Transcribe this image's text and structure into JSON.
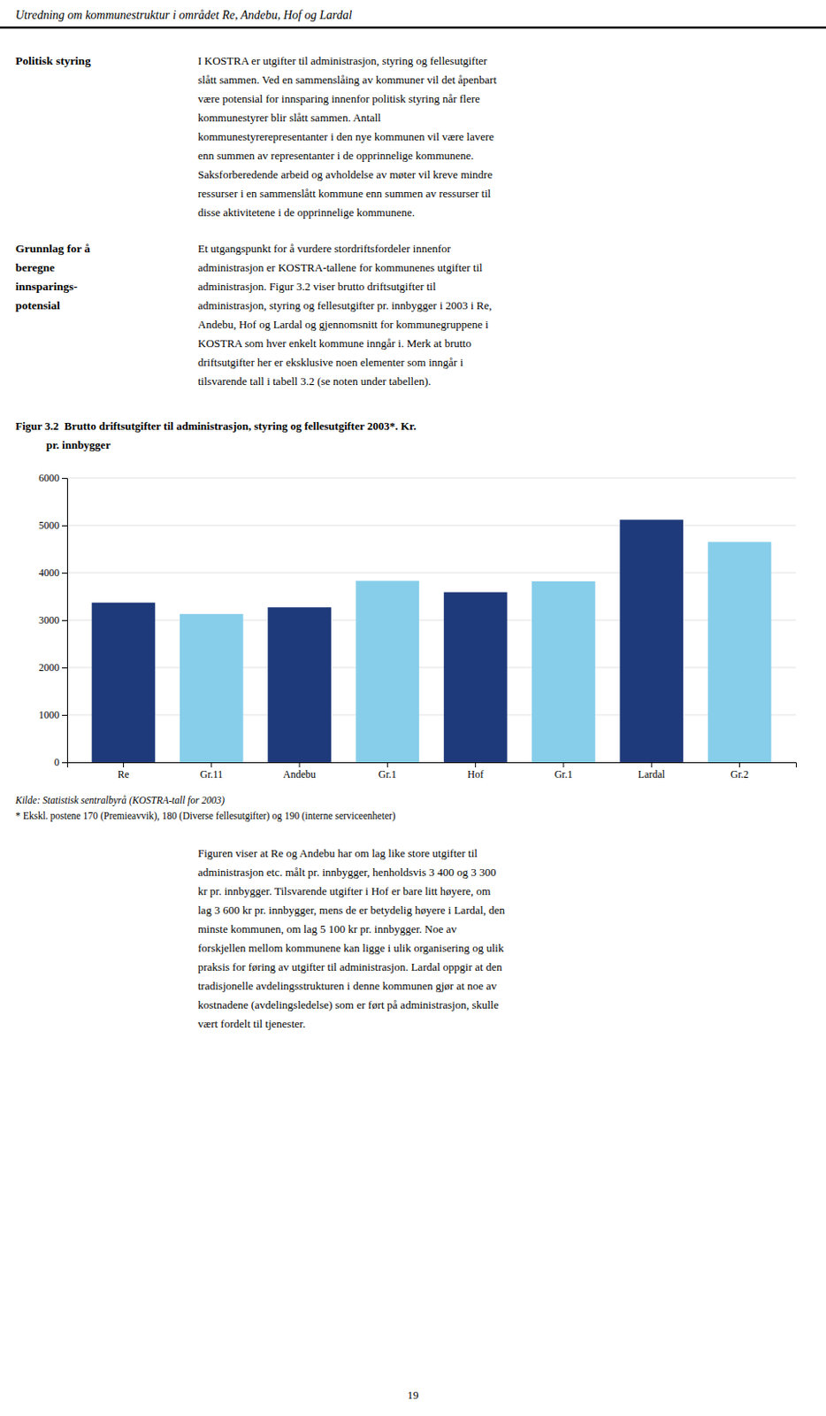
{
  "page_title": "Utredning om kommunestruktur i området Re, Andebu, Hof og Lardal",
  "heading1_lines": [
    "Politisk styring"
  ],
  "paragraph1_lines": [
    "I KOSTRA er utgifter til administrasjon, styring og fellesutgifter",
    "slått sammen. Ved en sammenslåing av kommuner vil det åpenbart",
    "være potensial for innsparing innenfor politisk styring når flere",
    "kommunestyrer blir slått sammen. Antall",
    "kommunestyrerepresentanter i den nye kommunen vil være lavere",
    "enn summen av representanter i de opprinnelige kommunene.",
    "Saksforberedende arbeid og avholdelse av møter vil kreve mindre",
    "ressurser i en sammenslått kommune enn summen av ressurser til",
    "disse aktivitetene i de opprinnelige kommunene."
  ],
  "heading2_lines": [
    "Grunnlag for å",
    "beregne",
    "innsparings-",
    "potensial"
  ],
  "paragraph2_lines": [
    "Et utgangspunkt for å vurdere stordriftsfordeler innenfor",
    "administrasjon er KOSTRA-tallene for kommunenes utgifter til",
    "administrasjon. Figur 3.2 viser brutto driftsutgifter til",
    "administrasjon, styring og fellesutgifter pr. innbygger i 2003 i Re,",
    "Andebu, Hof og Lardal og gjennomsnitt for kommunegruppene i",
    "KOSTRA som hver enkelt kommune inngår i. Merk at brutto",
    "driftsutgifter her er eksklusive noen elementer som inngår i",
    "tilsvarende tall i tabell 3.2 (se noten under tabellen)."
  ],
  "chart_data": {
    "type": "bar",
    "title": "Figur 3.2  Brutto driftsutgifter til administrasjon, styring og fellesutgifter 2003*. Kr.",
    "subtitle": "           pr. innbygger",
    "categories": [
      "Re",
      "Gr.11",
      "Andebu",
      "Gr.1",
      "Hof",
      "Gr.1",
      "Lardal",
      "Gr.2"
    ],
    "values": [
      3370,
      3130,
      3270,
      3830,
      3590,
      3820,
      5120,
      4650
    ],
    "colors": [
      "#1F3A7A",
      "#87CEEB",
      "#1F3A7A",
      "#87CEEB",
      "#1F3A7A",
      "#87CEEB",
      "#1F3A7A",
      "#87CEEB"
    ],
    "ylim": [
      0,
      6000
    ],
    "yticks": [
      0,
      1000,
      2000,
      3000,
      4000,
      5000,
      6000
    ],
    "grid": true,
    "annotations": [
      "Kilde: Statistisk sentralbyrå (KOSTRA-tall for 2003)",
      "* Ekskl. postene 170 (Premieavvik), 180 (Diverse fellesutgifter) og 190 (interne serviceenheter)"
    ]
  },
  "bottom_text_lines": [
    "Figuren viser at Re og Andebu har om lag like store utgifter til",
    "administrasjon etc. målt pr. innbygger, henholdsvis 3 400 og 3 300",
    "kr pr. innbygger. Tilsvarende utgifter i Hof er bare litt høyere, om",
    "lag 3 600 kr pr. innbygger, mens de er betydelig høyere i Lardal, den",
    "minste kommunen, om lag 5 100 kr pr. innbygger. Noe av",
    "forskjellen mellom kommunene kan ligge i ulik organisering og ulik",
    "praksis for føring av utgifter til administrasjon. Lardal oppgir at den",
    "tradisjonelle avdelingsstrukturen i denne kommunen gjør at noe av",
    "kostnadene (avdelingsledelse) som er ført på administrasjon, skulle",
    "vært fordelt til tjenester."
  ],
  "page_number": "19"
}
